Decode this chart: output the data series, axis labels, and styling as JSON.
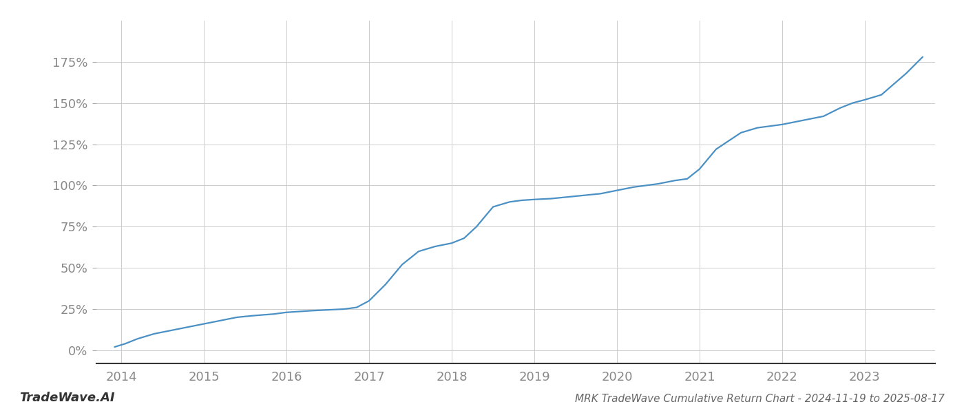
{
  "title": "MRK TradeWave Cumulative Return Chart - 2024-11-19 to 2025-08-17",
  "watermark": "TradeWave.AI",
  "line_color": "#4a90c4",
  "background_color": "#ffffff",
  "grid_color": "#cccccc",
  "x_years": [
    2014,
    2015,
    2016,
    2017,
    2018,
    2019,
    2020,
    2021,
    2022,
    2023
  ],
  "x_values": [
    2013.92,
    2014.05,
    2014.2,
    2014.4,
    2014.6,
    2014.8,
    2015.0,
    2015.2,
    2015.4,
    2015.6,
    2015.85,
    2016.0,
    2016.15,
    2016.3,
    2016.5,
    2016.7,
    2016.85,
    2017.0,
    2017.2,
    2017.4,
    2017.6,
    2017.8,
    2018.0,
    2018.15,
    2018.3,
    2018.5,
    2018.7,
    2018.85,
    2019.0,
    2019.2,
    2019.4,
    2019.6,
    2019.8,
    2020.0,
    2020.2,
    2020.5,
    2020.7,
    2020.85,
    2021.0,
    2021.2,
    2021.5,
    2021.7,
    2021.85,
    2022.0,
    2022.2,
    2022.5,
    2022.7,
    2022.85,
    2023.0,
    2023.2,
    2023.5,
    2023.7
  ],
  "y_values": [
    2,
    4,
    7,
    10,
    12,
    14,
    16,
    18,
    20,
    21,
    22,
    23,
    23.5,
    24,
    24.5,
    25,
    26,
    30,
    40,
    52,
    60,
    63,
    65,
    68,
    75,
    87,
    90,
    91,
    91.5,
    92,
    93,
    94,
    95,
    97,
    99,
    101,
    103,
    104,
    110,
    122,
    132,
    135,
    136,
    137,
    139,
    142,
    147,
    150,
    152,
    155,
    168,
    178
  ],
  "ylim": [
    -8,
    200
  ],
  "xlim": [
    2013.7,
    2023.85
  ],
  "yticks": [
    0,
    25,
    50,
    75,
    100,
    125,
    150,
    175
  ],
  "title_fontsize": 11,
  "watermark_fontsize": 13,
  "axis_fontsize": 13,
  "line_width": 1.6
}
